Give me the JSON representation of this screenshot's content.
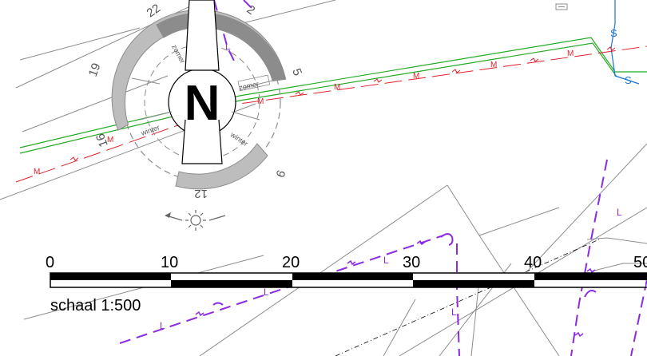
{
  "map": {
    "compass": {
      "north_letter": "N",
      "hour_marks": [
        "22",
        "2",
        "19",
        "5",
        "16",
        "9",
        "12"
      ],
      "season_labels": {
        "summer_top": "zomer",
        "summer_right": "zomer",
        "winter_left": "winter",
        "winter_right": "winter"
      },
      "icons": [
        "sun-icon",
        "arrow-left-icon"
      ]
    },
    "scale_bar": {
      "ticks": [
        "0",
        "10",
        "20",
        "30",
        "40",
        "50"
      ],
      "caption": "schaal 1:500"
    },
    "line_markers": {
      "red_line": "M",
      "purple_line": "L",
      "blue_line": "S"
    },
    "colors": {
      "red_line": "#e0202a",
      "green_line": "#22aa22",
      "purple_line": "#8a2be2",
      "blue_line": "#1a73d9",
      "parcel_line": "#8c8c8c",
      "compass_ring_dark": "#8c8c8c",
      "compass_ring_light": "#bdbdbd"
    }
  }
}
